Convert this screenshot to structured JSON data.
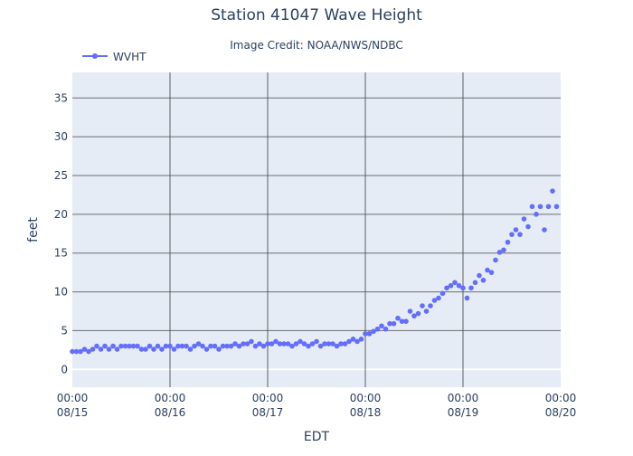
{
  "chart_data": {
    "type": "scatter",
    "title": "Station 41047 Wave Height",
    "subtitle": "Image Credit: NOAA/NWS/NDBC",
    "xlabel": "EDT",
    "ylabel": "feet",
    "xlim": [
      "2024-08-15T00:00",
      "2024-08-20T00:00"
    ],
    "ylim": [
      -2.3,
      38.3
    ],
    "xticks": [
      {
        "value": "2024-08-15T00:00",
        "time": "00:00",
        "date": "08/15"
      },
      {
        "value": "2024-08-16T00:00",
        "time": "00:00",
        "date": "08/16"
      },
      {
        "value": "2024-08-17T00:00",
        "time": "00:00",
        "date": "08/17"
      },
      {
        "value": "2024-08-18T00:00",
        "time": "00:00",
        "date": "08/18"
      },
      {
        "value": "2024-08-19T00:00",
        "time": "00:00",
        "date": "08/19"
      },
      {
        "value": "2024-08-20T00:00",
        "time": "00:00",
        "date": "08/20"
      }
    ],
    "yticks": [
      0,
      5,
      10,
      15,
      20,
      25,
      30,
      35
    ],
    "grid": true,
    "legend": {
      "position": "top-left"
    },
    "colors": {
      "series": "#636efa",
      "plot_bg": "#e5ecf6",
      "grid": "#444444",
      "text": "#2a3f5f"
    },
    "series": [
      {
        "name": "WVHT",
        "points": [
          [
            "2024-08-15T00:00",
            2.3
          ],
          [
            "2024-08-15T01:00",
            2.3
          ],
          [
            "2024-08-15T02:00",
            2.3
          ],
          [
            "2024-08-15T03:00",
            2.6
          ],
          [
            "2024-08-15T04:00",
            2.3
          ],
          [
            "2024-08-15T05:00",
            2.6
          ],
          [
            "2024-08-15T06:00",
            3.0
          ],
          [
            "2024-08-15T07:00",
            2.6
          ],
          [
            "2024-08-15T08:00",
            3.0
          ],
          [
            "2024-08-15T09:00",
            2.6
          ],
          [
            "2024-08-15T10:00",
            3.0
          ],
          [
            "2024-08-15T11:00",
            2.6
          ],
          [
            "2024-08-15T12:00",
            3.0
          ],
          [
            "2024-08-15T13:00",
            3.0
          ],
          [
            "2024-08-15T14:00",
            3.0
          ],
          [
            "2024-08-15T15:00",
            3.0
          ],
          [
            "2024-08-15T16:00",
            3.0
          ],
          [
            "2024-08-15T17:00",
            2.6
          ],
          [
            "2024-08-15T18:00",
            2.6
          ],
          [
            "2024-08-15T19:00",
            3.0
          ],
          [
            "2024-08-15T20:00",
            2.6
          ],
          [
            "2024-08-15T21:00",
            3.0
          ],
          [
            "2024-08-15T22:00",
            2.6
          ],
          [
            "2024-08-15T23:00",
            3.0
          ],
          [
            "2024-08-16T00:00",
            3.0
          ],
          [
            "2024-08-16T01:00",
            2.6
          ],
          [
            "2024-08-16T02:00",
            3.0
          ],
          [
            "2024-08-16T03:00",
            3.0
          ],
          [
            "2024-08-16T04:00",
            3.0
          ],
          [
            "2024-08-16T05:00",
            2.6
          ],
          [
            "2024-08-16T06:00",
            3.0
          ],
          [
            "2024-08-16T07:00",
            3.3
          ],
          [
            "2024-08-16T08:00",
            3.0
          ],
          [
            "2024-08-16T09:00",
            2.6
          ],
          [
            "2024-08-16T10:00",
            3.0
          ],
          [
            "2024-08-16T11:00",
            3.0
          ],
          [
            "2024-08-16T12:00",
            2.6
          ],
          [
            "2024-08-16T13:00",
            3.0
          ],
          [
            "2024-08-16T14:00",
            3.0
          ],
          [
            "2024-08-16T15:00",
            3.0
          ],
          [
            "2024-08-16T16:00",
            3.3
          ],
          [
            "2024-08-16T17:00",
            3.0
          ],
          [
            "2024-08-16T18:00",
            3.3
          ],
          [
            "2024-08-16T19:00",
            3.3
          ],
          [
            "2024-08-16T20:00",
            3.6
          ],
          [
            "2024-08-16T21:00",
            3.0
          ],
          [
            "2024-08-16T22:00",
            3.3
          ],
          [
            "2024-08-16T23:00",
            3.0
          ],
          [
            "2024-08-17T00:00",
            3.3
          ],
          [
            "2024-08-17T01:00",
            3.3
          ],
          [
            "2024-08-17T02:00",
            3.6
          ],
          [
            "2024-08-17T03:00",
            3.3
          ],
          [
            "2024-08-17T04:00",
            3.3
          ],
          [
            "2024-08-17T05:00",
            3.3
          ],
          [
            "2024-08-17T06:00",
            3.0
          ],
          [
            "2024-08-17T07:00",
            3.3
          ],
          [
            "2024-08-17T08:00",
            3.6
          ],
          [
            "2024-08-17T09:00",
            3.3
          ],
          [
            "2024-08-17T10:00",
            3.0
          ],
          [
            "2024-08-17T11:00",
            3.3
          ],
          [
            "2024-08-17T12:00",
            3.6
          ],
          [
            "2024-08-17T13:00",
            3.0
          ],
          [
            "2024-08-17T14:00",
            3.3
          ],
          [
            "2024-08-17T15:00",
            3.3
          ],
          [
            "2024-08-17T16:00",
            3.3
          ],
          [
            "2024-08-17T17:00",
            3.0
          ],
          [
            "2024-08-17T18:00",
            3.3
          ],
          [
            "2024-08-17T19:00",
            3.3
          ],
          [
            "2024-08-17T20:00",
            3.6
          ],
          [
            "2024-08-17T21:00",
            3.9
          ],
          [
            "2024-08-17T22:00",
            3.6
          ],
          [
            "2024-08-17T23:00",
            3.9
          ],
          [
            "2024-08-18T00:00",
            4.6
          ],
          [
            "2024-08-18T01:00",
            4.6
          ],
          [
            "2024-08-18T02:00",
            4.9
          ],
          [
            "2024-08-18T03:00",
            5.2
          ],
          [
            "2024-08-18T04:00",
            5.6
          ],
          [
            "2024-08-18T05:00",
            5.2
          ],
          [
            "2024-08-18T06:00",
            5.9
          ],
          [
            "2024-08-18T07:00",
            5.9
          ],
          [
            "2024-08-18T08:00",
            6.6
          ],
          [
            "2024-08-18T09:00",
            6.2
          ],
          [
            "2024-08-18T10:00",
            6.2
          ],
          [
            "2024-08-18T11:00",
            7.5
          ],
          [
            "2024-08-18T12:00",
            6.9
          ],
          [
            "2024-08-18T13:00",
            7.2
          ],
          [
            "2024-08-18T14:00",
            8.2
          ],
          [
            "2024-08-18T15:00",
            7.5
          ],
          [
            "2024-08-18T16:00",
            8.2
          ],
          [
            "2024-08-18T17:00",
            8.9
          ],
          [
            "2024-08-18T18:00",
            9.2
          ],
          [
            "2024-08-18T19:00",
            9.8
          ],
          [
            "2024-08-18T20:00",
            10.5
          ],
          [
            "2024-08-18T21:00",
            10.8
          ],
          [
            "2024-08-18T22:00",
            11.2
          ],
          [
            "2024-08-18T23:00",
            10.8
          ],
          [
            "2024-08-19T00:00",
            10.5
          ],
          [
            "2024-08-19T01:00",
            9.2
          ],
          [
            "2024-08-19T02:00",
            10.5
          ],
          [
            "2024-08-19T03:00",
            11.2
          ],
          [
            "2024-08-19T04:00",
            12.1
          ],
          [
            "2024-08-19T05:00",
            11.5
          ],
          [
            "2024-08-19T06:00",
            12.8
          ],
          [
            "2024-08-19T07:00",
            12.5
          ],
          [
            "2024-08-19T08:00",
            14.1
          ],
          [
            "2024-08-19T09:00",
            15.1
          ],
          [
            "2024-08-19T10:00",
            15.4
          ],
          [
            "2024-08-19T11:00",
            16.4
          ],
          [
            "2024-08-19T12:00",
            17.4
          ],
          [
            "2024-08-19T13:00",
            18.0
          ],
          [
            "2024-08-19T14:00",
            17.4
          ],
          [
            "2024-08-19T15:00",
            19.4
          ],
          [
            "2024-08-19T16:00",
            18.4
          ],
          [
            "2024-08-19T17:00",
            21.0
          ],
          [
            "2024-08-19T18:00",
            20.0
          ],
          [
            "2024-08-19T19:00",
            21.0
          ],
          [
            "2024-08-19T20:00",
            18.0
          ],
          [
            "2024-08-19T21:00",
            21.0
          ],
          [
            "2024-08-19T22:00",
            23.0
          ],
          [
            "2024-08-19T23:00",
            21.0
          ]
        ]
      }
    ]
  }
}
